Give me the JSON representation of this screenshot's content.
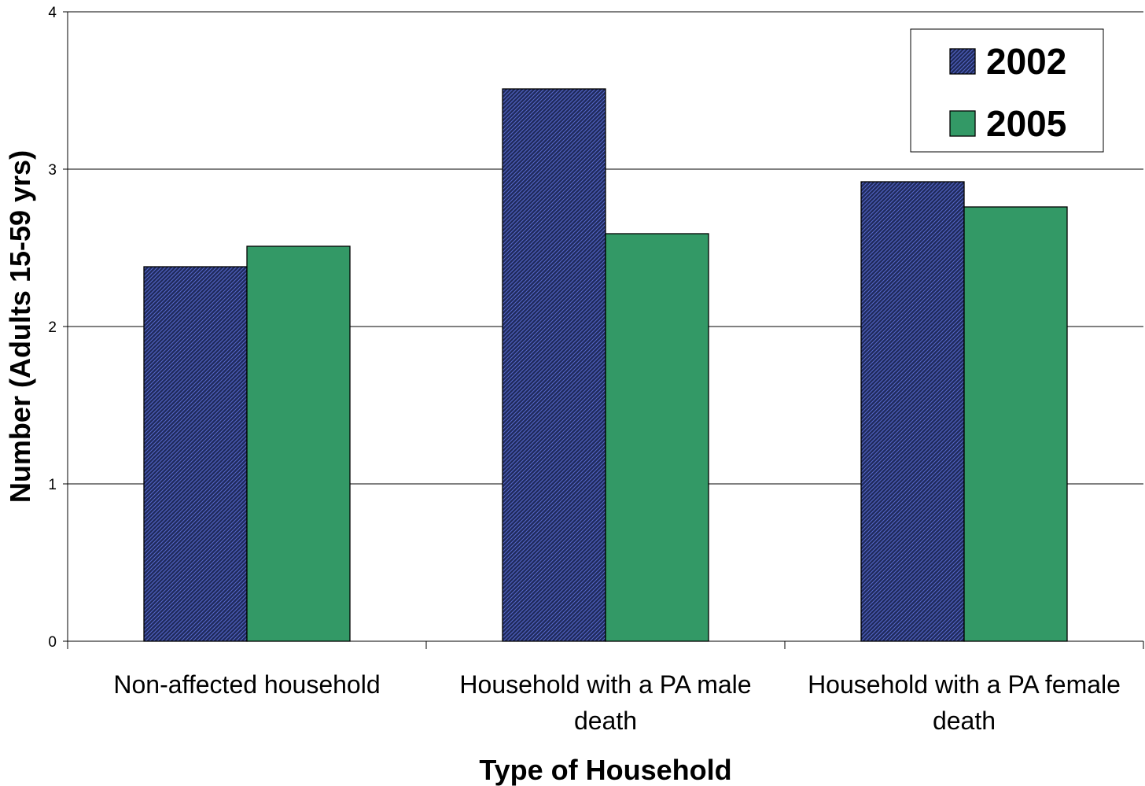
{
  "chart_data": {
    "type": "bar",
    "title": "",
    "xlabel": "Type of Household",
    "ylabel": "Number (Adults 15-59 yrs)",
    "ylim": [
      0,
      4
    ],
    "yticks": [
      0,
      1,
      2,
      3,
      4
    ],
    "grid": "horizontal",
    "legend_position": "top-right",
    "categories": [
      [
        "Non-affected household"
      ],
      [
        "Household with a PA male",
        "death"
      ],
      [
        "Household with a PA female",
        "death"
      ]
    ],
    "series": [
      {
        "name": "2002",
        "values": [
          2.38,
          3.51,
          2.92
        ],
        "color": "#1f2a5c",
        "pattern": "diagonal-hatch"
      },
      {
        "name": "2005",
        "values": [
          2.51,
          2.59,
          2.76
        ],
        "color": "#339966"
      }
    ]
  }
}
